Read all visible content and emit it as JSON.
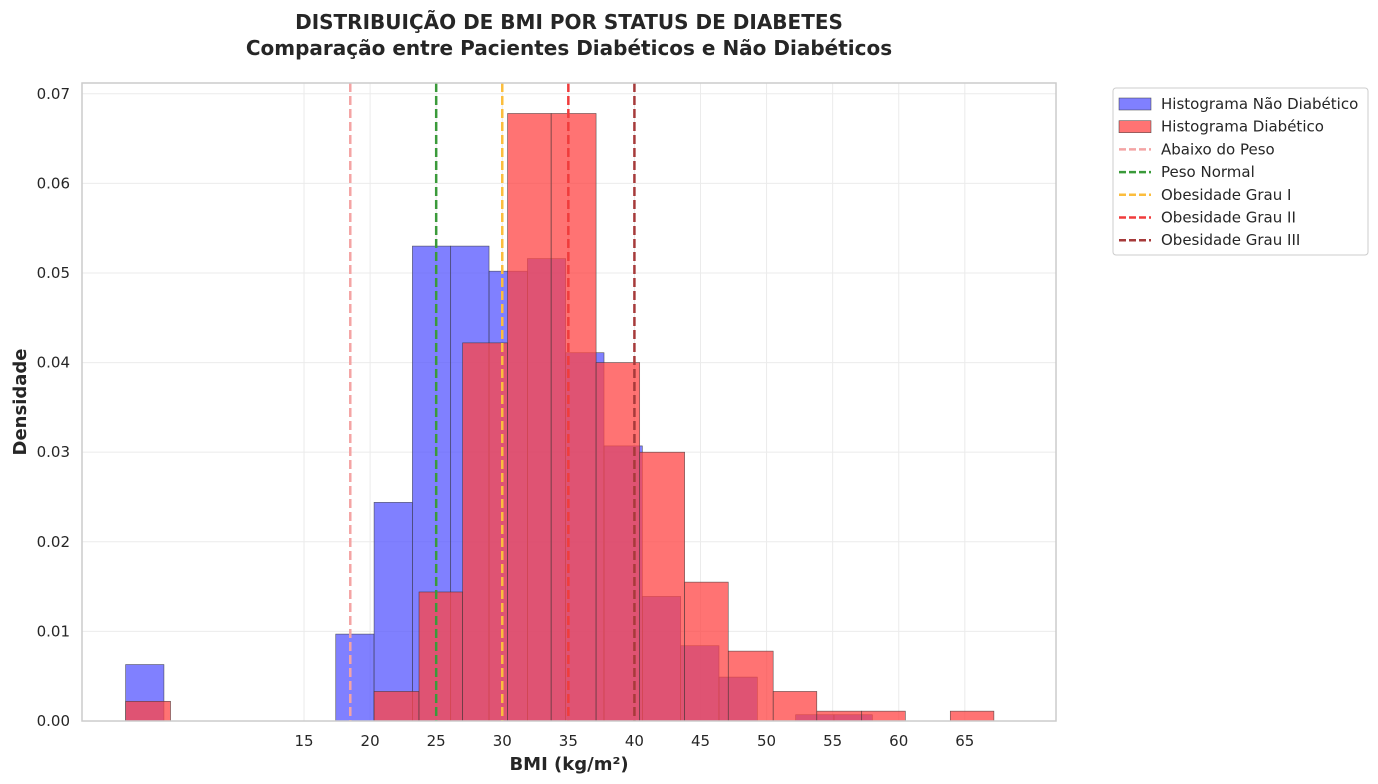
{
  "chart_data": {
    "type": "bar",
    "title": "DISTRIBUIÇÃO DE BMI POR STATUS DE DIABETES",
    "subtitle": "Comparação entre Pacientes Diabéticos e Não Diabéticos",
    "xlabel": "BMI (kg/m²)",
    "ylabel": "Densidade",
    "xlim": [
      -1.8,
      71.9
    ],
    "ylim": [
      0,
      0.0712
    ],
    "x_ticks": [
      15,
      20,
      25,
      30,
      35,
      40,
      45,
      50,
      55,
      60,
      65
    ],
    "y_ticks": [
      0.0,
      0.01,
      0.02,
      0.03,
      0.04,
      0.05,
      0.06,
      0.07
    ],
    "y_tick_labels": [
      "0.00",
      "0.01",
      "0.02",
      "0.03",
      "0.04",
      "0.05",
      "0.06",
      "0.07"
    ],
    "grid": true,
    "legend_position": "outside-top-right",
    "series": [
      {
        "name": "Histograma Não Diabético",
        "color": "#5555ff",
        "bins": [
          {
            "x0": 1.5,
            "x1": 4.4,
            "value": 0.0063
          },
          {
            "x0": 17.4,
            "x1": 20.3,
            "value": 0.0097
          },
          {
            "x0": 20.3,
            "x1": 23.2,
            "value": 0.0244
          },
          {
            "x0": 23.2,
            "x1": 26.1,
            "value": 0.053
          },
          {
            "x0": 26.1,
            "x1": 29.0,
            "value": 0.053
          },
          {
            "x0": 29.0,
            "x1": 31.9,
            "value": 0.0502
          },
          {
            "x0": 31.9,
            "x1": 34.8,
            "value": 0.0516
          },
          {
            "x0": 34.8,
            "x1": 37.7,
            "value": 0.0411
          },
          {
            "x0": 37.7,
            "x1": 40.6,
            "value": 0.0307
          },
          {
            "x0": 40.6,
            "x1": 43.5,
            "value": 0.0139
          },
          {
            "x0": 43.5,
            "x1": 46.4,
            "value": 0.0084
          },
          {
            "x0": 46.4,
            "x1": 49.3,
            "value": 0.0049
          },
          {
            "x0": 52.2,
            "x1": 55.1,
            "value": 0.0007
          },
          {
            "x0": 55.1,
            "x1": 58.0,
            "value": 0.0007
          }
        ]
      },
      {
        "name": "Histograma Diabético",
        "color": "#ff4444",
        "bins": [
          {
            "x0": 1.5,
            "x1": 4.9,
            "value": 0.0022
          },
          {
            "x0": 20.3,
            "x1": 23.7,
            "value": 0.0033
          },
          {
            "x0": 23.7,
            "x1": 27.0,
            "value": 0.0144
          },
          {
            "x0": 27.0,
            "x1": 30.4,
            "value": 0.0422
          },
          {
            "x0": 30.4,
            "x1": 33.7,
            "value": 0.0678
          },
          {
            "x0": 33.7,
            "x1": 37.1,
            "value": 0.0678
          },
          {
            "x0": 37.1,
            "x1": 40.4,
            "value": 0.04
          },
          {
            "x0": 40.4,
            "x1": 43.8,
            "value": 0.03
          },
          {
            "x0": 43.8,
            "x1": 47.1,
            "value": 0.0155
          },
          {
            "x0": 47.1,
            "x1": 50.5,
            "value": 0.0078
          },
          {
            "x0": 50.5,
            "x1": 53.8,
            "value": 0.0033
          },
          {
            "x0": 53.8,
            "x1": 57.2,
            "value": 0.0011
          },
          {
            "x0": 57.2,
            "x1": 60.5,
            "value": 0.0011
          },
          {
            "x0": 63.9,
            "x1": 67.2,
            "value": 0.0011
          }
        ]
      }
    ],
    "reference_lines": [
      {
        "name": "Abaixo do Peso",
        "x": 18.5,
        "color": "#f4a4a4"
      },
      {
        "name": "Peso Normal",
        "x": 25,
        "color": "#3a9a3a"
      },
      {
        "name": "Obesidade Grau I",
        "x": 30,
        "color": "#fbbd3d"
      },
      {
        "name": "Obesidade Grau II",
        "x": 35,
        "color": "#f03c3c"
      },
      {
        "name": "Obesidade Grau III",
        "x": 40,
        "color": "#a63a3a"
      }
    ]
  }
}
